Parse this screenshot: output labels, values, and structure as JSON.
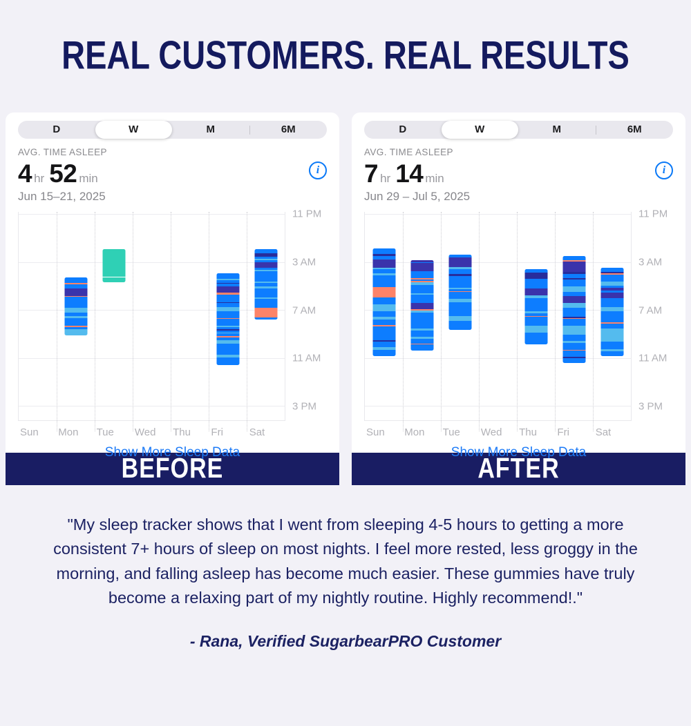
{
  "page": {
    "title": "REAL CUSTOMERS. REAL RESULTS"
  },
  "colors": {
    "background": "#f2f1f7",
    "navy_banner": "#191d63",
    "headline_navy": "#141a5e",
    "link_blue": "#1d7bf7",
    "blue": "#0d7dff",
    "indigo": "#3a33ab",
    "navy": "#282d9b",
    "sky": "#54bbee",
    "coral": "#fd8368",
    "teal": "#2fd0b5",
    "white": "#ffffff"
  },
  "testimonial": {
    "quote": "\"My sleep tracker shows that I went from sleeping 4-5 hours to getting a more consistent 7+ hours of sleep on most nights. I feel more rested, less groggy in the morning, and falling asleep has become much easier. These gummies have truly become a relaxing part of my nightly routine. Highly recommend!.\"",
    "attribution": "- Rana, Verified SugarbearPRO Customer"
  },
  "chart_data": [
    {
      "type": "bar",
      "variant": "sleep-time-range-columns",
      "panel_label": "BEFORE",
      "range_options": [
        "D",
        "W",
        "M",
        "6M"
      ],
      "selected_range": "W",
      "metric_label": "AVG. TIME ASLEEP",
      "value": {
        "hours": "4",
        "hours_unit": "hr",
        "minutes": "52",
        "minutes_unit": "min"
      },
      "date_range": "Jun 15–21, 2025",
      "footer_link": "Show More Sleep Data",
      "info_icon_glyph": "i",
      "categories": [
        "Sun",
        "Mon",
        "Tue",
        "Wed",
        "Thu",
        "Fri",
        "Sat"
      ],
      "y_axis": {
        "ticks": [
          "11 PM",
          "3 AM",
          "7 AM",
          "11 AM",
          "3 PM"
        ],
        "tick_hours": [
          0,
          4,
          8,
          12,
          16
        ],
        "range_hours": [
          -0.2,
          17.2
        ]
      },
      "bars": [
        {
          "day": "Mon",
          "start": "4:17 AM",
          "end": "9:05 AM",
          "start_h": 5.3,
          "end_h": 10.1,
          "segments": [
            [
              "blue",
              8
            ],
            [
              "coral",
              1.5
            ],
            [
              "blue",
              6
            ],
            [
              "indigo",
              11
            ],
            [
              "coral",
              1.5
            ],
            [
              "blue",
              16
            ],
            [
              "sky",
              7
            ],
            [
              "blue",
              5
            ],
            [
              "sky",
              3
            ],
            [
              "blue",
              12
            ],
            [
              "coral",
              1.5
            ],
            [
              "blue",
              3
            ],
            [
              "sky",
              9
            ]
          ]
        },
        {
          "day": "Tue",
          "start": "1:53 AM",
          "end": "4:38 AM",
          "start_h": 2.9,
          "end_h": 5.65,
          "segments": [
            [
              "teal",
              40
            ],
            [
              "white",
              1.5
            ],
            [
              "teal",
              6
            ]
          ]
        },
        {
          "day": "Fri",
          "start": "3:56 AM",
          "end": "11:36 AM",
          "start_h": 4.95,
          "end_h": 12.6,
          "segments": [
            [
              "blue",
              7
            ],
            [
              "sky",
              1.5
            ],
            [
              "blue",
              4
            ],
            [
              "navy",
              1.5
            ],
            [
              "blue",
              3
            ],
            [
              "indigo",
              9
            ],
            [
              "coral",
              2.5
            ],
            [
              "blue",
              10
            ],
            [
              "navy",
              1.5
            ],
            [
              "blue",
              5
            ],
            [
              "sky",
              6
            ],
            [
              "blue",
              9
            ],
            [
              "coral",
              1.5
            ],
            [
              "blue",
              9
            ],
            [
              "sky",
              1.5
            ],
            [
              "blue",
              3
            ],
            [
              "navy",
              1.5
            ],
            [
              "blue",
              3
            ],
            [
              "sky",
              1.5
            ],
            [
              "blue",
              3
            ],
            [
              "coral",
              2.5
            ],
            [
              "blue",
              3
            ],
            [
              "sky",
              5
            ],
            [
              "blue",
              15
            ],
            [
              "sky",
              4
            ],
            [
              "blue",
              10
            ]
          ]
        },
        {
          "day": "Sat",
          "start": "1:53 AM",
          "end": "7:46 AM",
          "start_h": 2.9,
          "end_h": 8.8,
          "segments": [
            [
              "blue",
              6
            ],
            [
              "navy",
              4
            ],
            [
              "blue",
              3
            ],
            [
              "sky",
              2
            ],
            [
              "blue",
              3
            ],
            [
              "indigo",
              7
            ],
            [
              "blue",
              3
            ],
            [
              "sky",
              2
            ],
            [
              "blue",
              14
            ],
            [
              "sky",
              2
            ],
            [
              "blue",
              4
            ],
            [
              "sky",
              3
            ],
            [
              "blue",
              12
            ],
            [
              "sky",
              2
            ],
            [
              "blue",
              12
            ],
            [
              "coral",
              13
            ],
            [
              "blue",
              3
            ]
          ]
        }
      ]
    },
    {
      "type": "bar",
      "variant": "sleep-time-range-columns",
      "panel_label": "AFTER",
      "range_options": [
        "D",
        "W",
        "M",
        "6M"
      ],
      "selected_range": "W",
      "metric_label": "AVG. TIME ASLEEP",
      "value": {
        "hours": "7",
        "hours_unit": "hr",
        "minutes": "14",
        "minutes_unit": "min"
      },
      "date_range": "Jun 29 – Jul 5, 2025",
      "footer_link": "Show More Sleep Data",
      "info_icon_glyph": "i",
      "categories": [
        "Sun",
        "Mon",
        "Tue",
        "Wed",
        "Thu",
        "Fri",
        "Sat"
      ],
      "y_axis": {
        "ticks": [
          "11 PM",
          "3 AM",
          "7 AM",
          "11 AM",
          "3 PM"
        ],
        "tick_hours": [
          0,
          4,
          8,
          12,
          16
        ],
        "range_hours": [
          -0.2,
          17.2
        ]
      },
      "bars": [
        {
          "day": "Sun",
          "start": "1:50 AM",
          "end": "10:52 AM",
          "start_h": 2.85,
          "end_h": 11.85,
          "segments": [
            [
              "blue",
              7
            ],
            [
              "navy",
              2.5
            ],
            [
              "blue",
              4
            ],
            [
              "indigo",
              10
            ],
            [
              "sky",
              2
            ],
            [
              "blue",
              5
            ],
            [
              "sky",
              2
            ],
            [
              "blue",
              15
            ],
            [
              "coral",
              12
            ],
            [
              "blue",
              9
            ],
            [
              "sky",
              8
            ],
            [
              "blue",
              7
            ],
            [
              "sky",
              3
            ],
            [
              "blue",
              7
            ],
            [
              "coral",
              1.5
            ],
            [
              "blue",
              17
            ],
            [
              "navy",
              1.5
            ],
            [
              "blue",
              7
            ],
            [
              "sky",
              3
            ],
            [
              "blue",
              8
            ]
          ]
        },
        {
          "day": "Mon",
          "start": "2:51 AM",
          "end": "10:24 AM",
          "start_h": 3.85,
          "end_h": 11.4,
          "segments": [
            [
              "indigo",
              2
            ],
            [
              "blue",
              1
            ],
            [
              "indigo",
              9
            ],
            [
              "blue",
              7
            ],
            [
              "coral",
              1.5
            ],
            [
              "blue",
              1.5
            ],
            [
              "coral",
              1.5
            ],
            [
              "sky",
              3
            ],
            [
              "blue",
              9
            ],
            [
              "sky",
              1.5
            ],
            [
              "blue",
              9
            ],
            [
              "indigo",
              6
            ],
            [
              "coral",
              2
            ],
            [
              "sky",
              2
            ],
            [
              "blue",
              17
            ],
            [
              "sky",
              2
            ],
            [
              "blue",
              7
            ],
            [
              "sky",
              2
            ],
            [
              "blue",
              5
            ],
            [
              "coral",
              1
            ],
            [
              "blue",
              7
            ]
          ]
        },
        {
          "day": "Tue",
          "start": "2:24 AM",
          "end": "8:38 AM",
          "start_h": 3.4,
          "end_h": 9.65,
          "segments": [
            [
              "blue",
              3
            ],
            [
              "indigo",
              10
            ],
            [
              "sky",
              2.5
            ],
            [
              "blue",
              5
            ],
            [
              "navy",
              2
            ],
            [
              "blue",
              13
            ],
            [
              "sky",
              1.5
            ],
            [
              "blue",
              2
            ],
            [
              "coral",
              1.2
            ],
            [
              "blue",
              7
            ],
            [
              "sky",
              4
            ],
            [
              "blue",
              15
            ],
            [
              "sky",
              5
            ],
            [
              "blue",
              10
            ]
          ]
        },
        {
          "day": "Thu",
          "start": "3:36 AM",
          "end": "9:50 AM",
          "start_h": 4.6,
          "end_h": 10.85,
          "segments": [
            [
              "blue",
              3
            ],
            [
              "navy",
              7
            ],
            [
              "blue",
              10
            ],
            [
              "indigo",
              7
            ],
            [
              "sky",
              2.5
            ],
            [
              "blue",
              14
            ],
            [
              "sky",
              1.5
            ],
            [
              "blue",
              3
            ],
            [
              "coral",
              1.2
            ],
            [
              "blue",
              9
            ],
            [
              "sky",
              7
            ],
            [
              "blue",
              12
            ]
          ]
        },
        {
          "day": "Fri",
          "start": "2:31 AM",
          "end": "11:22 AM",
          "start_h": 3.5,
          "end_h": 12.4,
          "segments": [
            [
              "blue",
              4
            ],
            [
              "coral",
              1.2
            ],
            [
              "indigo",
              11
            ],
            [
              "navy",
              2
            ],
            [
              "blue",
              4
            ],
            [
              "navy",
              1.5
            ],
            [
              "blue",
              7
            ],
            [
              "sky",
              6
            ],
            [
              "blue",
              4
            ],
            [
              "indigo",
              7
            ],
            [
              "sky",
              5
            ],
            [
              "blue",
              9
            ],
            [
              "navy",
              1.2
            ],
            [
              "coral",
              1.2
            ],
            [
              "blue",
              7
            ],
            [
              "sky",
              9
            ],
            [
              "blue",
              6
            ],
            [
              "sky",
              2
            ],
            [
              "blue",
              7
            ],
            [
              "coral",
              1.2
            ],
            [
              "blue",
              6
            ],
            [
              "navy",
              1.2
            ],
            [
              "blue",
              5
            ]
          ]
        },
        {
          "day": "Sat",
          "start": "3:26 AM",
          "end": "10:52 AM",
          "start_h": 4.45,
          "end_h": 11.85,
          "segments": [
            [
              "blue",
              4
            ],
            [
              "navy",
              1.5
            ],
            [
              "coral",
              1.2
            ],
            [
              "blue",
              7
            ],
            [
              "sky",
              4
            ],
            [
              "blue",
              2
            ],
            [
              "indigo",
              3
            ],
            [
              "blue",
              2
            ],
            [
              "indigo",
              5
            ],
            [
              "blue",
              9
            ],
            [
              "sky",
              4
            ],
            [
              "blue",
              11
            ],
            [
              "coral",
              1.2
            ],
            [
              "blue",
              5
            ],
            [
              "sky",
              13
            ],
            [
              "blue",
              7
            ],
            [
              "sky",
              2
            ],
            [
              "blue",
              5
            ]
          ]
        }
      ]
    }
  ]
}
